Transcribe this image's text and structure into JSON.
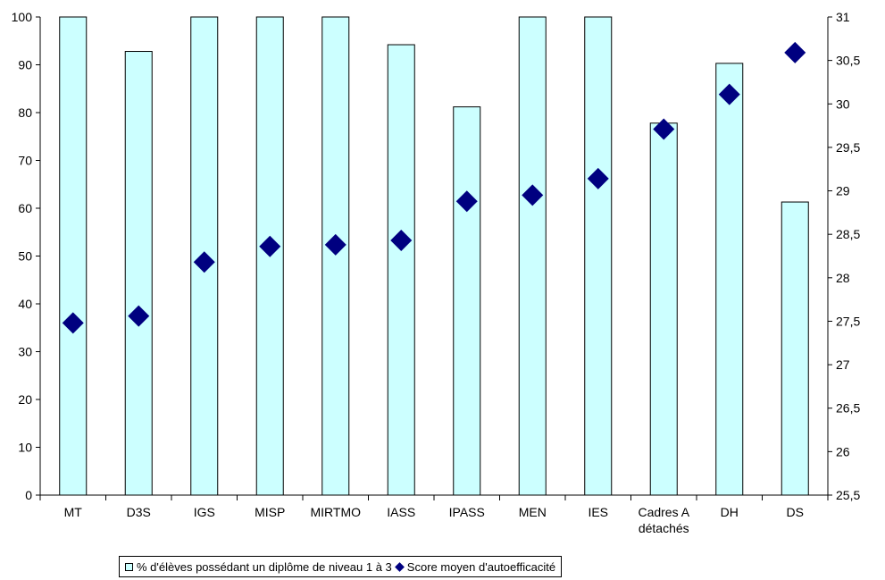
{
  "chart_data": {
    "type": "bar+scatter",
    "categories": [
      "MT",
      "D3S",
      "IGS",
      "MISP",
      "MIRTMO",
      "IASS",
      "IPASS",
      "MEN",
      "IES",
      "Cadres A détachés",
      "DH",
      "DS"
    ],
    "series": [
      {
        "name": "% d'élèves possédant un diplôme de niveau 1 à 3",
        "type": "bar",
        "axis": "left",
        "values": [
          100,
          92.8,
          100,
          100,
          100,
          94.2,
          81.2,
          100,
          100,
          77.8,
          90.3,
          61.3
        ]
      },
      {
        "name": "Score moyen d'autoefficacité",
        "type": "scatter",
        "axis": "right",
        "values": [
          27.48,
          27.56,
          28.18,
          28.36,
          28.38,
          28.43,
          28.88,
          28.95,
          29.14,
          29.71,
          30.11,
          30.59
        ]
      }
    ],
    "y_left": {
      "min": 0,
      "max": 100,
      "step": 10
    },
    "y_right": {
      "min": 25.5,
      "max": 31,
      "step": 0.5
    },
    "y_right_ticks": [
      "25,5",
      "26",
      "26,5",
      "27",
      "27,5",
      "28",
      "28,5",
      "29",
      "29,5",
      "30",
      "30,5",
      "31"
    ],
    "legend_position": "bottom",
    "grid": false
  },
  "colors": {
    "bar_fill": "#ccffff",
    "bar_stroke": "#000000",
    "marker": "#000080"
  }
}
